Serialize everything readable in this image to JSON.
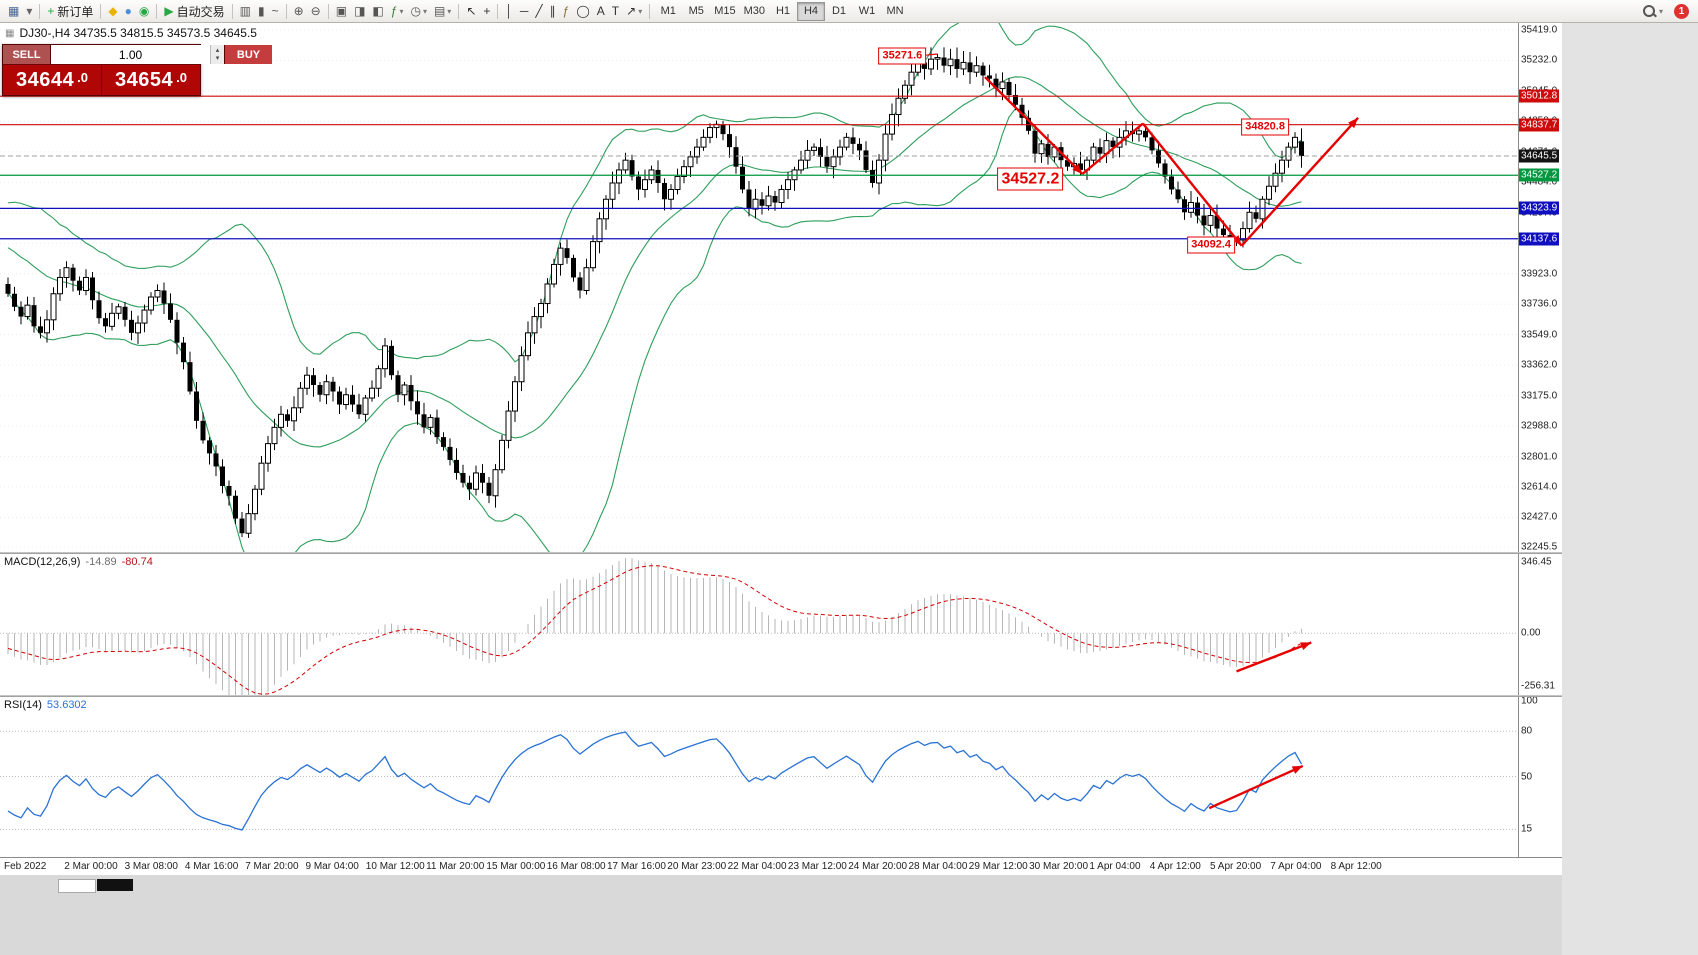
{
  "toolbar": {
    "new_order_label": "新订单",
    "auto_trading_label": "自动交易",
    "notification_count": "1",
    "timeframes": [
      "M1",
      "M5",
      "M15",
      "M30",
      "H1",
      "H4",
      "D1",
      "W1",
      "MN"
    ],
    "active_timeframe": "H4",
    "icon_groups": [
      {
        "items": [
          {
            "name": "new-chart-icon",
            "glyph": "▦",
            "color": "#46648c"
          },
          {
            "name": "profiles-icon",
            "glyph": "▾",
            "color": "#666666"
          }
        ]
      },
      {
        "items": [
          {
            "name": "new-order-button",
            "glyph": "+",
            "color": "#1faa3c",
            "label": "新订单"
          }
        ]
      },
      {
        "items": [
          {
            "name": "mql5-wizard-icon",
            "glyph": "◆",
            "color": "#eab308"
          },
          {
            "name": "market-icon",
            "glyph": "●",
            "color": "#4a90d9"
          },
          {
            "name": "signals-icon",
            "glyph": "◉",
            "color": "#27a844"
          }
        ]
      },
      {
        "items": [
          {
            "name": "auto-trading-button",
            "glyph": "▶",
            "color": "#27a844",
            "label": "自动交易"
          }
        ]
      },
      {
        "items": [
          {
            "name": "bar-chart-icon",
            "glyph": "▥",
            "color": "#555555"
          },
          {
            "name": "candlestick-chart-icon",
            "glyph": "▮",
            "color": "#555555"
          },
          {
            "name": "line-chart-icon",
            "glyph": "~",
            "color": "#555555"
          }
        ]
      },
      {
        "items": [
          {
            "name": "zoom-in-icon",
            "glyph": "⊕",
            "color": "#555555"
          },
          {
            "name": "zoom-out-icon",
            "glyph": "⊖",
            "color": "#555555"
          }
        ]
      },
      {
        "items": [
          {
            "name": "tile-windows-icon",
            "glyph": "▣",
            "color": "#555555"
          },
          {
            "name": "chart-shift-icon",
            "glyph": "◨",
            "color": "#555555"
          },
          {
            "name": "auto-scroll-icon",
            "glyph": "◧",
            "color": "#555555"
          },
          {
            "name": "indicators-list-icon",
            "glyph": "ƒ",
            "color": "#3c7a3c",
            "dropdown": true
          },
          {
            "name": "periods-icon",
            "glyph": "◷",
            "color": "#555555",
            "dropdown": true
          },
          {
            "name": "templates-icon",
            "glyph": "▤",
            "color": "#555555",
            "dropdown": true
          }
        ]
      },
      {
        "items": [
          {
            "name": "cursor-icon",
            "glyph": "↖",
            "color": "#333333"
          },
          {
            "name": "crosshair-icon",
            "glyph": "+",
            "color": "#333333"
          }
        ]
      },
      {
        "items": [
          {
            "name": "vertical-line-icon",
            "glyph": "│",
            "color": "#333333"
          },
          {
            "name": "horizontal-line-icon",
            "glyph": "─",
            "color": "#333333"
          },
          {
            "name": "trendline-icon",
            "glyph": "╱",
            "color": "#333333"
          },
          {
            "name": "equidistant-channel-icon",
            "glyph": "∥",
            "color": "#333333"
          },
          {
            "name": "fibonacci-icon",
            "glyph": "ƒ",
            "color": "#8a6d3b"
          },
          {
            "name": "shapes-icon",
            "glyph": "◯",
            "color": "#333333"
          },
          {
            "name": "text-icon",
            "glyph": "A",
            "color": "#333333"
          },
          {
            "name": "text-label-icon",
            "glyph": "T",
            "color": "#333333"
          },
          {
            "name": "arrows-tool-icon",
            "glyph": "↗",
            "color": "#333333",
            "dropdown": true
          }
        ]
      }
    ]
  },
  "glyphs": {
    "dropdown": "▾",
    "spin_up": "▴",
    "spin_down": "▾",
    "title_icon": "▦"
  },
  "chart": {
    "title": "DJ30-,H4 34735.5 34815.5 34573.5 34645.5"
  },
  "trade_panel": {
    "sell_label": "SELL",
    "buy_label": "BUY",
    "volume": "1.00",
    "sell_price_int": "34644",
    "sell_price_dec": ".0",
    "buy_price_int": "34654",
    "buy_price_dec": ".0"
  },
  "price_axis": {
    "ticks": [
      "35419.0",
      "35232.0",
      "35045.0",
      "34858.0",
      "34671.0",
      "34484.0",
      "34297.0",
      "34110.0",
      "33923.0",
      "33736.0",
      "33549.0",
      "33362.0",
      "33175.0",
      "32988.0",
      "32801.0",
      "32614.0",
      "32427.0",
      "32245.5"
    ],
    "badges": [
      {
        "value": "35012.8",
        "color": "#cf0a0a"
      },
      {
        "value": "34837.7",
        "color": "#cf0a0a"
      },
      {
        "value": "34645.5",
        "color": "#141414"
      },
      {
        "value": "34527.2",
        "color": "#00973f"
      },
      {
        "value": "34323.9",
        "color": "#0f0fbf"
      },
      {
        "value": "34137.6",
        "color": "#0f0fbf"
      }
    ]
  },
  "time_axis": {
    "labels": [
      "Feb 2022",
      "2 Mar 00:00",
      "3 Mar 08:00",
      "4 Mar 16:00",
      "7 Mar 20:00",
      "9 Mar 04:00",
      "10 Mar 12:00",
      "11 Mar 20:00",
      "15 Mar 00:00",
      "16 Mar 08:00",
      "17 Mar 16:00",
      "20 Mar 23:00",
      "22 Mar 04:00",
      "23 Mar 12:00",
      "24 Mar 20:00",
      "28 Mar 04:00",
      "29 Mar 12:00",
      "30 Mar 20:00",
      "1 Apr 04:00",
      "4 Apr 12:00",
      "5 Apr 20:00",
      "7 Apr 04:00",
      "8 Apr 12:00"
    ]
  },
  "macd": {
    "label": "MACD(12,26,9)",
    "value_main": "-14.89",
    "value_signal": "-80.74",
    "axis": [
      "346.45",
      "0.00",
      "-256.31"
    ]
  },
  "rsi": {
    "label": "RSI(14)",
    "value": "53.6302",
    "axis": [
      "100",
      "80",
      "50",
      "15"
    ]
  },
  "annotations": [
    {
      "text": "35271.6",
      "bar": 137.6,
      "price": 35259,
      "large": false
    },
    {
      "text": "34820.8",
      "bar": 193.4,
      "price": 34823,
      "large": false
    },
    {
      "text": "34527.2",
      "bar": 157.3,
      "price": 34505,
      "large": true
    },
    {
      "text": "34092.4",
      "bar": 185.1,
      "price": 34100,
      "large": false
    }
  ],
  "trend_arrows": [
    {
      "pane": "main",
      "from": {
        "bar": 140.6,
        "v": 35262
      },
      "to": {
        "bar": 143.0,
        "v": 35271.6
      },
      "head": false,
      "thin": true
    },
    {
      "pane": "main",
      "from": {
        "bar": 150.3,
        "v": 35130
      },
      "to": {
        "bar": 165.3,
        "v": 34535
      },
      "head": true
    },
    {
      "pane": "main",
      "from": {
        "bar": 165.3,
        "v": 34535
      },
      "to": {
        "bar": 174.6,
        "v": 34845
      },
      "head": false
    },
    {
      "pane": "main",
      "from": {
        "bar": 174.6,
        "v": 34845
      },
      "to": {
        "bar": 189.8,
        "v": 34095
      },
      "head": true
    },
    {
      "pane": "main",
      "from": {
        "bar": 189.8,
        "v": 34095
      },
      "to": {
        "bar": 207.7,
        "v": 34880
      },
      "head": true
    },
    {
      "pane": "macd",
      "from": {
        "bar": 189.0,
        "v": -185
      },
      "to": {
        "bar": 200.5,
        "v": -45
      },
      "head": true
    },
    {
      "pane": "rsi",
      "from": {
        "bar": 184.8,
        "v": 29
      },
      "to": {
        "bar": 199.2,
        "v": 57
      },
      "head": true
    }
  ],
  "colors": {
    "bollinger": "#2e9e5b",
    "candle_up": "#ffffff",
    "candle_down": "#000000",
    "candle_line": "#000000",
    "macd_hist": "#b6b6b6",
    "macd_signal": "#d40000",
    "rsi_line": "#2a72d4",
    "arrow": "#e60000",
    "bid_line": "#a0a0a0",
    "grid": "#ececec",
    "level_dots": "#bdbdbd"
  },
  "chart_data": {
    "type": "candlestick",
    "symbol": "DJ30-",
    "period": "H4",
    "last_ohlc": {
      "open": 34735.5,
      "high": 34815.5,
      "low": 34573.5,
      "close": 34645.5
    },
    "price_range": [
      32245.5,
      35419.0
    ],
    "bollinger": {
      "period": 20,
      "deviation": 2
    },
    "macd": {
      "params": [
        12,
        26,
        9
      ],
      "range": [
        -256.31,
        346.45
      ]
    },
    "rsi": {
      "params": [
        14
      ],
      "range": [
        0,
        100
      ],
      "levels": [
        80,
        50,
        15
      ]
    },
    "bid_price": 34645.5,
    "horizontal_levels": [
      {
        "price": 35012.8,
        "color": "#cf0a0a"
      },
      {
        "price": 34837.7,
        "color": "#cf0a0a"
      },
      {
        "price": 34527.2,
        "color": "#00973f"
      },
      {
        "price": 34323.9,
        "color": "#0f0fbf"
      },
      {
        "price": 34137.6,
        "color": "#0f0fbf"
      }
    ],
    "warmup": [
      34280,
      34250,
      34300,
      34220,
      34260,
      34180,
      34220,
      34140,
      34180,
      34100,
      34140,
      34060,
      34090,
      34010,
      34040,
      33960,
      33990,
      33920,
      33940,
      33860
    ],
    "closes": [
      33800,
      33720,
      33660,
      33730,
      33600,
      33560,
      33640,
      33800,
      33900,
      33960,
      33880,
      33820,
      33900,
      33760,
      33650,
      33600,
      33680,
      33720,
      33640,
      33560,
      33620,
      33700,
      33780,
      33820,
      33740,
      33640,
      33500,
      33380,
      33200,
      33020,
      32900,
      32820,
      32740,
      32620,
      32560,
      32420,
      32330,
      32450,
      32600,
      32760,
      32880,
      32980,
      33060,
      33020,
      33100,
      33220,
      33300,
      33240,
      33180,
      33260,
      33200,
      33120,
      33180,
      33120,
      33060,
      33160,
      33220,
      33340,
      33480,
      33300,
      33180,
      33240,
      33140,
      33060,
      32980,
      33040,
      32920,
      32860,
      32780,
      32700,
      32640,
      32600,
      32700,
      32640,
      32560,
      32720,
      32900,
      33080,
      33260,
      33420,
      33560,
      33660,
      33740,
      33860,
      33980,
      34080,
      34020,
      33900,
      33820,
      33960,
      34120,
      34260,
      34380,
      34480,
      34560,
      34620,
      34520,
      34440,
      34500,
      34560,
      34480,
      34380,
      34440,
      34520,
      34580,
      34640,
      34700,
      34760,
      34820,
      34840,
      34780,
      34700,
      34580,
      34440,
      34320,
      34380,
      34340,
      34400,
      34360,
      34440,
      34500,
      34560,
      34620,
      34680,
      34700,
      34640,
      34580,
      34640,
      34700,
      34760,
      34720,
      34680,
      34560,
      34480,
      34620,
      34780,
      34900,
      35000,
      35080,
      35160,
      35220,
      35180,
      35240,
      35250,
      35200,
      35240,
      35180,
      35220,
      35160,
      35200,
      35140,
      35120,
      35060,
      35100,
      35020,
      34960,
      34880,
      34800,
      34660,
      34720,
      34640,
      34700,
      34620,
      34580,
      34600,
      34560,
      34620,
      34700,
      34660,
      34740,
      34700,
      34760,
      34800,
      34780,
      34800,
      34760,
      34680,
      34600,
      34520,
      34440,
      34380,
      34300,
      34360,
      34280,
      34220,
      34280,
      34200,
      34160,
      34120,
      34130,
      34200,
      34300,
      34260,
      34380,
      34460,
      34540,
      34620,
      34700,
      34760,
      34645.5
    ],
    "key_candles": {
      "143": {
        "high": 35271.6
      },
      "165": {
        "low": 34527.2
      },
      "174": {
        "high": 34820.8
      },
      "189": {
        "low": 34092.4
      },
      "199": {
        "open": 34735.5,
        "high": 34815.5,
        "low": 34573.5,
        "close": 34645.5
      }
    }
  }
}
